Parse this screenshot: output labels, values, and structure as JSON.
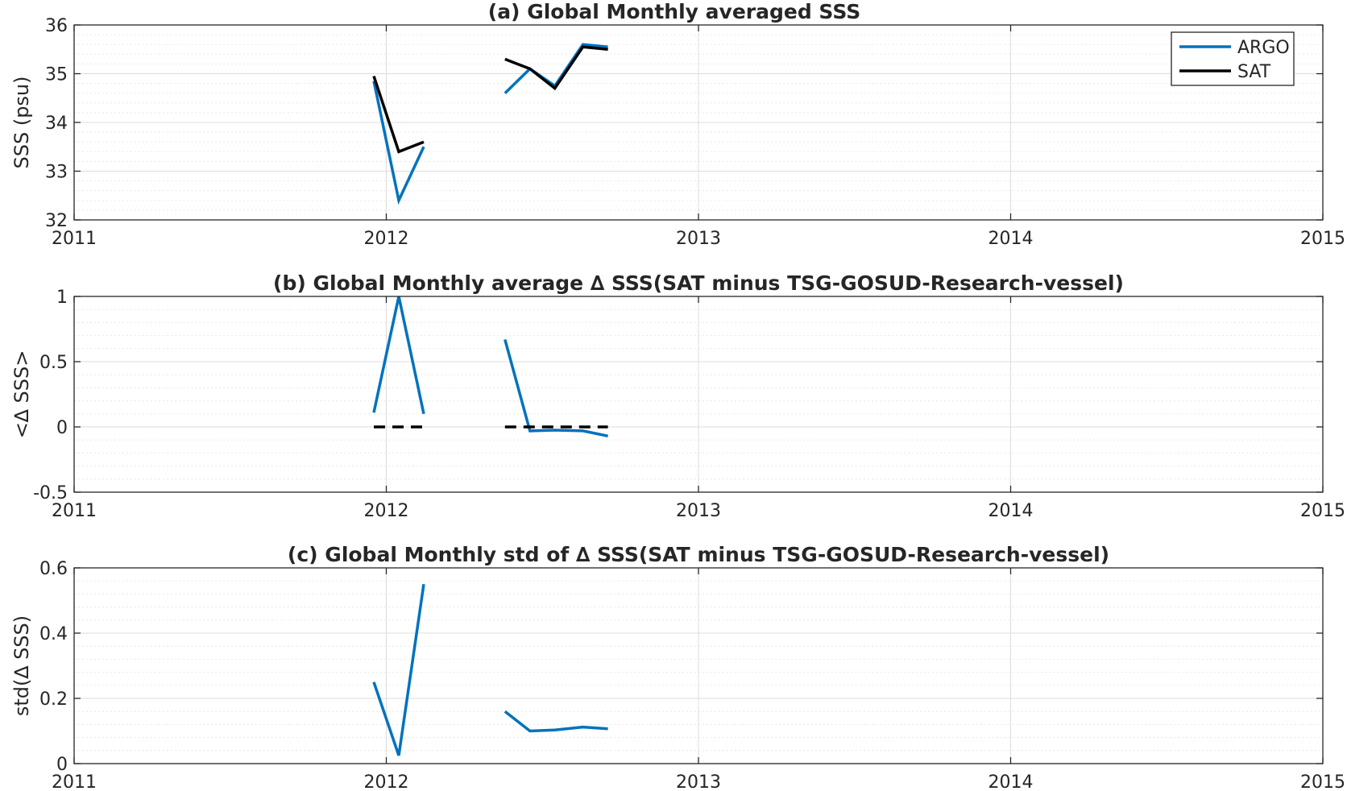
{
  "colors": {
    "argo": "#0072BD",
    "sat": "#000000",
    "grid_major": "#dcdcdc",
    "grid_minor": "#e8e8e8",
    "axes": "#262626"
  },
  "chart_data": [
    {
      "type": "line",
      "title": "(a) Global Monthly averaged SSS",
      "xlabel": "",
      "ylabel": "SSS (psu)",
      "xlim": [
        2011,
        2015
      ],
      "ylim": [
        32,
        36
      ],
      "xticks": [
        "2011",
        "2012",
        "2013",
        "2014",
        "2015"
      ],
      "yticks": [
        "32",
        "33",
        "34",
        "35",
        "36"
      ],
      "grid": true,
      "minor_grid": true,
      "legend": {
        "position": "top-right",
        "entries": [
          "ARGO",
          "SAT"
        ]
      },
      "series": [
        {
          "name": "ARGO",
          "color": "argo",
          "dashed": false,
          "segments": [
            [
              [
                2011.96,
                34.85
              ],
              [
                2012.04,
                32.4
              ],
              [
                2012.12,
                33.5
              ]
            ],
            [
              [
                2012.38,
                34.6
              ],
              [
                2012.46,
                35.1
              ],
              [
                2012.54,
                34.75
              ],
              [
                2012.63,
                35.6
              ],
              [
                2012.71,
                35.55
              ]
            ]
          ]
        },
        {
          "name": "SAT",
          "color": "sat",
          "dashed": false,
          "segments": [
            [
              [
                2011.96,
                34.95
              ],
              [
                2012.04,
                33.4
              ],
              [
                2012.12,
                33.6
              ]
            ],
            [
              [
                2012.38,
                35.3
              ],
              [
                2012.46,
                35.1
              ],
              [
                2012.54,
                34.7
              ],
              [
                2012.63,
                35.55
              ],
              [
                2012.71,
                35.5
              ]
            ]
          ]
        }
      ]
    },
    {
      "type": "line",
      "title": "(b) Global Monthly average ∆ SSS(SAT minus TSG-GOSUD-Research-vessel)",
      "xlabel": "",
      "ylabel": "<∆ SSS>",
      "xlim": [
        2011,
        2015
      ],
      "ylim": [
        -0.5,
        1
      ],
      "xticks": [
        "2011",
        "2012",
        "2013",
        "2014",
        "2015"
      ],
      "yticks": [
        "-0.5",
        "0",
        "0.5",
        "1"
      ],
      "grid": true,
      "minor_grid": true,
      "series": [
        {
          "color": "argo",
          "dashed": false,
          "segments": [
            [
              [
                2011.96,
                0.11
              ],
              [
                2012.04,
                1.0
              ],
              [
                2012.12,
                0.1
              ]
            ],
            [
              [
                2012.38,
                0.67
              ],
              [
                2012.46,
                -0.03
              ],
              [
                2012.54,
                -0.025
              ],
              [
                2012.63,
                -0.03
              ],
              [
                2012.71,
                -0.07
              ]
            ]
          ]
        },
        {
          "color": "sat",
          "dashed": true,
          "segments": [
            [
              [
                2011.96,
                0
              ],
              [
                2012.04,
                0
              ],
              [
                2012.12,
                0
              ]
            ],
            [
              [
                2012.38,
                0
              ],
              [
                2012.46,
                0
              ],
              [
                2012.54,
                0
              ],
              [
                2012.63,
                0
              ],
              [
                2012.71,
                0
              ]
            ]
          ]
        }
      ]
    },
    {
      "type": "line",
      "title": "(c) Global Monthly std of ∆ SSS(SAT minus TSG-GOSUD-Research-vessel)",
      "xlabel": "",
      "ylabel": "std(∆ SSS)",
      "xlim": [
        2011,
        2015
      ],
      "ylim": [
        0,
        0.6
      ],
      "xticks": [
        "2011",
        "2012",
        "2013",
        "2014",
        "2015"
      ],
      "yticks": [
        "0",
        "0.2",
        "0.4",
        "0.6"
      ],
      "grid": true,
      "minor_grid": true,
      "series": [
        {
          "color": "argo",
          "dashed": false,
          "segments": [
            [
              [
                2011.96,
                0.25
              ],
              [
                2012.04,
                0.025
              ],
              [
                2012.12,
                0.55
              ]
            ],
            [
              [
                2012.38,
                0.16
              ],
              [
                2012.46,
                0.1
              ],
              [
                2012.54,
                0.103
              ],
              [
                2012.63,
                0.112
              ],
              [
                2012.71,
                0.107
              ]
            ]
          ]
        }
      ]
    }
  ]
}
